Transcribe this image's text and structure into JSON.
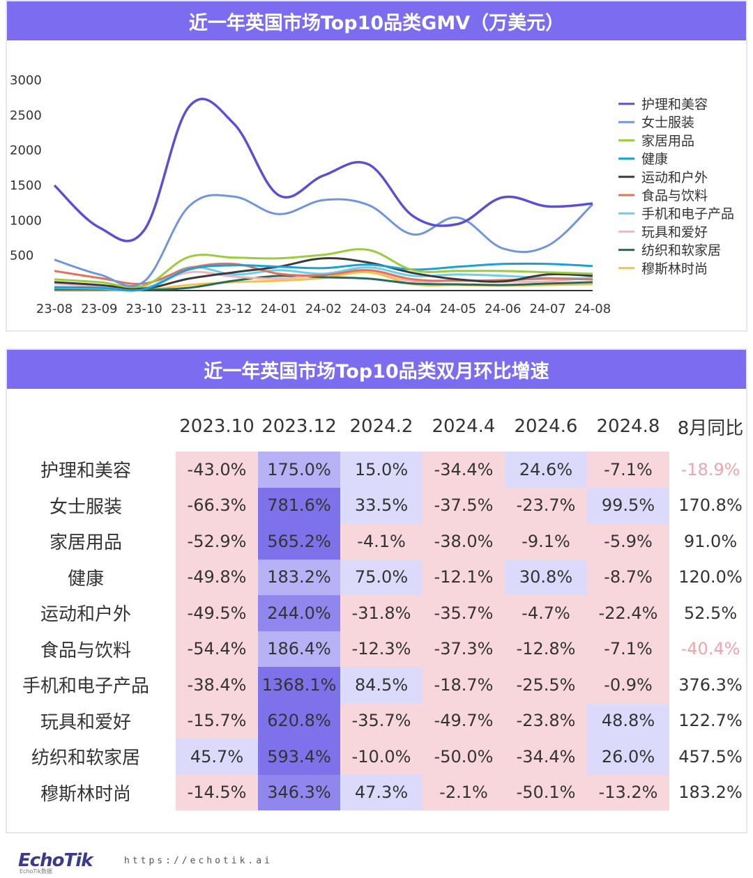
{
  "chart_data": [
    {
      "type": "line",
      "title": "近一年英国市场Top10品类GMV（万美元）",
      "categories": [
        "23-08",
        "23-09",
        "23-10",
        "23-11",
        "23-12",
        "24-01",
        "24-02",
        "24-03",
        "24-04",
        "24-05",
        "24-06",
        "24-07",
        "24-08"
      ],
      "yticks": [
        500,
        1000,
        1500,
        2000,
        2500,
        3000
      ],
      "ylim": [
        0,
        3000
      ],
      "legend_position": "right",
      "series": [
        {
          "name": "护理和美容",
          "color": "#5b4fd4",
          "values": [
            1500,
            900,
            860,
            2620,
            2380,
            1360,
            1640,
            1800,
            1060,
            950,
            1330,
            1200,
            1240
          ]
        },
        {
          "name": "女士服装",
          "color": "#6f95de",
          "values": [
            440,
            230,
            130,
            1200,
            1340,
            1090,
            1290,
            1220,
            800,
            1040,
            600,
            640,
            1230
          ]
        },
        {
          "name": "家居用品",
          "color": "#9ccc3c",
          "values": [
            160,
            120,
            70,
            480,
            470,
            460,
            510,
            580,
            290,
            280,
            280,
            260,
            240
          ]
        },
        {
          "name": "健康",
          "color": "#1aa0d8",
          "values": [
            50,
            40,
            20,
            300,
            360,
            340,
            320,
            370,
            300,
            340,
            380,
            380,
            350
          ]
        },
        {
          "name": "运动和户外",
          "color": "#3a3a3a",
          "values": [
            120,
            80,
            30,
            170,
            260,
            340,
            460,
            400,
            250,
            160,
            130,
            230,
            210
          ]
        },
        {
          "name": "食品与饮料",
          "color": "#e2725b",
          "values": [
            280,
            180,
            100,
            320,
            380,
            240,
            220,
            290,
            160,
            140,
            150,
            170,
            160
          ]
        },
        {
          "name": "手机和电子产品",
          "color": "#66d0ee",
          "values": [
            40,
            30,
            20,
            330,
            230,
            290,
            240,
            330,
            210,
            230,
            210,
            180,
            170
          ]
        },
        {
          "name": "玩具和爱好",
          "color": "#f4b4bc",
          "values": [
            100,
            60,
            40,
            260,
            200,
            170,
            230,
            290,
            130,
            150,
            130,
            130,
            190
          ]
        },
        {
          "name": "纺织和软家居",
          "color": "#236b5b",
          "values": [
            20,
            20,
            10,
            40,
            140,
            210,
            190,
            170,
            100,
            90,
            80,
            100,
            120
          ]
        },
        {
          "name": "穆斯林时尚",
          "color": "#f2c14a",
          "values": [
            10,
            10,
            10,
            80,
            120,
            140,
            180,
            260,
            90,
            80,
            70,
            80,
            90
          ]
        }
      ]
    },
    {
      "type": "table",
      "title": "近一年英国市场Top10品类双月环比增速",
      "columns": [
        "2023.10",
        "2023.12",
        "2024.2",
        "2024.4",
        "2024.6",
        "2024.8",
        "8月同比"
      ],
      "rows": [
        {
          "label": "护理和美容",
          "values": [
            -43.0,
            175.0,
            15.0,
            -34.4,
            24.6,
            -7.1
          ],
          "text": [
            "-43.0%",
            "175.0%",
            "15.0%",
            "-34.4%",
            "24.6%",
            "-7.1%"
          ],
          "yoy": "-18.9%",
          "yoy_negative": true
        },
        {
          "label": "女士服装",
          "values": [
            -66.3,
            781.6,
            33.5,
            -37.5,
            -23.7,
            99.5
          ],
          "text": [
            "-66.3%",
            "781.6%",
            "33.5%",
            "-37.5%",
            "-23.7%",
            "99.5%"
          ],
          "yoy": "170.8%",
          "yoy_negative": false
        },
        {
          "label": "家居用品",
          "values": [
            -52.9,
            565.2,
            -4.1,
            -38.0,
            -9.1,
            -5.9
          ],
          "text": [
            "-52.9%",
            "565.2%",
            "-4.1%",
            "-38.0%",
            "-9.1%",
            "-5.9%"
          ],
          "yoy": "91.0%",
          "yoy_negative": false
        },
        {
          "label": "健康",
          "values": [
            -49.8,
            183.2,
            75.0,
            -12.1,
            30.8,
            -8.7
          ],
          "text": [
            "-49.8%",
            "183.2%",
            "75.0%",
            "-12.1%",
            "30.8%",
            "-8.7%"
          ],
          "yoy": "120.0%",
          "yoy_negative": false
        },
        {
          "label": "运动和户外",
          "values": [
            -49.5,
            244.0,
            -31.8,
            -35.7,
            -4.7,
            -22.4
          ],
          "text": [
            "-49.5%",
            "244.0%",
            "-31.8%",
            "-35.7%",
            "-4.7%",
            "-22.4%"
          ],
          "yoy": "52.5%",
          "yoy_negative": false
        },
        {
          "label": "食品与饮料",
          "values": [
            -54.4,
            186.4,
            -12.3,
            -37.3,
            -12.8,
            -7.1
          ],
          "text": [
            "-54.4%",
            "186.4%",
            "-12.3%",
            "-37.3%",
            "-12.8%",
            "-7.1%"
          ],
          "yoy": "-40.4%",
          "yoy_negative": true
        },
        {
          "label": "手机和电子产品",
          "values": [
            -38.4,
            1368.1,
            84.5,
            -18.7,
            -25.5,
            -0.9
          ],
          "text": [
            "-38.4%",
            "1368.1%",
            "84.5%",
            "-18.7%",
            "-25.5%",
            "-0.9%"
          ],
          "yoy": "376.3%",
          "yoy_negative": false
        },
        {
          "label": "玩具和爱好",
          "values": [
            -15.7,
            620.8,
            -35.7,
            -49.7,
            -23.8,
            48.8
          ],
          "text": [
            "-15.7%",
            "620.8%",
            "-35.7%",
            "-49.7%",
            "-23.8%",
            "48.8%"
          ],
          "yoy": "122.7%",
          "yoy_negative": false
        },
        {
          "label": "纺织和软家居",
          "values": [
            45.7,
            593.4,
            -10.0,
            -50.0,
            -34.4,
            26.0
          ],
          "text": [
            "45.7%",
            "593.4%",
            "-10.0%",
            "-50.0%",
            "-34.4%",
            "26.0%"
          ],
          "yoy": "457.5%",
          "yoy_negative": false
        },
        {
          "label": "穆斯林时尚",
          "values": [
            -14.5,
            346.3,
            47.3,
            -2.1,
            -50.1,
            -13.2
          ],
          "text": [
            "-14.5%",
            "346.3%",
            "47.3%",
            "-2.1%",
            "-50.1%",
            "-13.2%"
          ],
          "yoy": "183.2%",
          "yoy_negative": false
        }
      ]
    }
  ],
  "colors": {
    "header_bg": "#7b6cf0",
    "negative_cell": "#f8d7dc",
    "positive_light": "#dcdafb",
    "positive_mid": "#b7b1f6",
    "positive_dark": "#8f86ee",
    "positive_darkest": "#7d72ea",
    "yoy_negative_text": "#f2a3ae"
  },
  "footer": {
    "logo": "EchoTik",
    "logo_sub": "EchoTik数据",
    "url": "https://echotik.ai"
  }
}
